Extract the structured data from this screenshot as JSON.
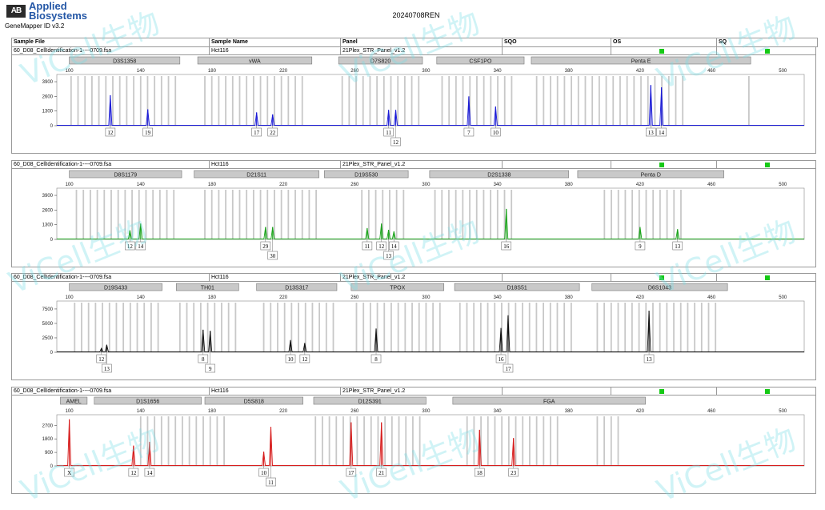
{
  "header": {
    "logo_mark": "AB",
    "logo_line1": "Applied",
    "logo_line2": "Biosystems",
    "app_version": "GeneMapper ID v3.2",
    "run_title": "20240708REN"
  },
  "columns": [
    "Sample File",
    "Sample Name",
    "Panel",
    "SQO",
    "OS",
    "SQ"
  ],
  "watermark_text": "ViCell生物",
  "colors": {
    "blue": "#1a1ad6",
    "green": "#1aa31a",
    "black": "#111111",
    "red": "#d61a1a",
    "bin": "#c8c8c8",
    "flag": "#15c915"
  },
  "chart_data": [
    {
      "type": "electropherogram",
      "dye": "blue",
      "sample_file": "60_D08_CellIdentification-1----0709.fsa",
      "sample_name": "Hct116",
      "panel_name": "21Plex_STR_Panel_v1.2",
      "x_ticks": [
        100,
        140,
        180,
        220,
        260,
        300,
        340,
        380,
        420,
        460,
        500
      ],
      "y_ticks": [
        0,
        1300,
        2600,
        3900
      ],
      "ylim": [
        0,
        4400
      ],
      "xlim": [
        93,
        512
      ],
      "markers": [
        {
          "name": "D3S1358",
          "range": [
            100,
            162
          ]
        },
        {
          "name": "vWA",
          "range": [
            172,
            236
          ]
        },
        {
          "name": "D7S820",
          "range": [
            251,
            298
          ]
        },
        {
          "name": "CSF1PO",
          "range": [
            306,
            355
          ]
        },
        {
          "name": "Penta E",
          "range": [
            359,
            482
          ]
        }
      ],
      "peaks": [
        {
          "x": 123,
          "h": 2700,
          "label": "12"
        },
        {
          "x": 144,
          "h": 1450,
          "label": "19"
        },
        {
          "x": 205,
          "h": 1180,
          "label": "17"
        },
        {
          "x": 214,
          "h": 1000,
          "label": "22"
        },
        {
          "x": 279,
          "h": 1400,
          "label": "11"
        },
        {
          "x": 283,
          "h": 1400,
          "label": "12"
        },
        {
          "x": 324,
          "h": 2600,
          "label": "7"
        },
        {
          "x": 339,
          "h": 1700,
          "label": "10"
        },
        {
          "x": 426,
          "h": 3600,
          "label": "13"
        },
        {
          "x": 432,
          "h": 3400,
          "label": "14"
        }
      ],
      "bins": [
        [
          101,
          160
        ],
        [
          176,
          232
        ],
        [
          253,
          298
        ],
        [
          309,
          350
        ],
        [
          362,
          446
        ],
        [
          481,
          482
        ]
      ]
    },
    {
      "type": "electropherogram",
      "dye": "green",
      "sample_file": "60_D08_CellIdentification-1----0709.fsa",
      "sample_name": "Hct116",
      "panel_name": "21Plex_STR_Panel_v1.2",
      "x_ticks": [
        100,
        140,
        180,
        220,
        260,
        300,
        340,
        380,
        420,
        460,
        500
      ],
      "y_ticks": [
        0,
        1300,
        2600,
        3900
      ],
      "ylim": [
        0,
        4400
      ],
      "xlim": [
        93,
        512
      ],
      "markers": [
        {
          "name": "D8S1179",
          "range": [
            100,
            163
          ]
        },
        {
          "name": "D21S11",
          "range": [
            170,
            240
          ]
        },
        {
          "name": "D19S530",
          "range": [
            243,
            290
          ]
        },
        {
          "name": "D2S1338",
          "range": [
            302,
            380
          ]
        },
        {
          "name": "Penta D",
          "range": [
            385,
            467
          ]
        }
      ],
      "peaks": [
        {
          "x": 134,
          "h": 800,
          "label": "12"
        },
        {
          "x": 140,
          "h": 1400,
          "label": "14"
        },
        {
          "x": 210,
          "h": 1100,
          "label": "29"
        },
        {
          "x": 214,
          "h": 1100,
          "label": "30"
        },
        {
          "x": 267,
          "h": 1000,
          "label": "11"
        },
        {
          "x": 275,
          "h": 1400,
          "label": "12"
        },
        {
          "x": 279,
          "h": 850,
          "label": "13"
        },
        {
          "x": 282,
          "h": 700,
          "label": "14"
        },
        {
          "x": 345,
          "h": 2700,
          "label": "16"
        },
        {
          "x": 420,
          "h": 1100,
          "label": "9"
        },
        {
          "x": 441,
          "h": 900,
          "label": "13"
        }
      ],
      "bins": [
        [
          104,
          160
        ],
        [
          176,
          240
        ],
        [
          264,
          290
        ],
        [
          305,
          350
        ],
        [
          400,
          446
        ]
      ]
    },
    {
      "type": "electropherogram",
      "dye": "black",
      "sample_file": "60_D08_CellIdentification-1----0709.fsa",
      "sample_name": "Hct116",
      "panel_name": "21Plex_STR_Panel_v1.2",
      "x_ticks": [
        100,
        140,
        180,
        220,
        260,
        300,
        340,
        380,
        420,
        460,
        500
      ],
      "y_ticks": [
        0,
        2500,
        5000,
        7500
      ],
      "ylim": [
        0,
        8600
      ],
      "xlim": [
        93,
        512
      ],
      "markers": [
        {
          "name": "D19S433",
          "range": [
            100,
            152
          ]
        },
        {
          "name": "TH01",
          "range": [
            160,
            195
          ]
        },
        {
          "name": "D13S317",
          "range": [
            205,
            250
          ]
        },
        {
          "name": "TPOX",
          "range": [
            258,
            310
          ]
        },
        {
          "name": "D18S51",
          "range": [
            316,
            386
          ]
        },
        {
          "name": "D6S1043",
          "range": [
            393,
            469
          ]
        }
      ],
      "peaks": [
        {
          "x": 118,
          "h": 700,
          "label": "12"
        },
        {
          "x": 121,
          "h": 1300,
          "label": "13"
        },
        {
          "x": 175,
          "h": 3900,
          "label": "8"
        },
        {
          "x": 179,
          "h": 3700,
          "label": "9"
        },
        {
          "x": 224,
          "h": 2100,
          "label": "10"
        },
        {
          "x": 232,
          "h": 1600,
          "label": "12"
        },
        {
          "x": 272,
          "h": 4100,
          "label": "8"
        },
        {
          "x": 342,
          "h": 4200,
          "label": "16"
        },
        {
          "x": 346,
          "h": 6400,
          "label": "17"
        },
        {
          "x": 425,
          "h": 7200,
          "label": "13"
        }
      ],
      "bins": [
        [
          103,
          150
        ],
        [
          162,
          195
        ],
        [
          209,
          250
        ],
        [
          261,
          310
        ],
        [
          319,
          383
        ],
        [
          396,
          465
        ]
      ]
    },
    {
      "type": "electropherogram",
      "dye": "red",
      "sample_file": "60_D08_CellIdentification-1----0709.fsa",
      "sample_name": "Hct116",
      "panel_name": "21Plex_STR_Panel_v1.2",
      "x_ticks": [
        100,
        140,
        180,
        220,
        260,
        300,
        340,
        380,
        420,
        460,
        500
      ],
      "y_ticks": [
        0,
        900,
        1800,
        2700
      ],
      "ylim": [
        0,
        3300
      ],
      "xlim": [
        93,
        512
      ],
      "markers": [
        {
          "name": "AMEL",
          "range": [
            95,
            110
          ]
        },
        {
          "name": "D1S1656",
          "range": [
            114,
            174
          ]
        },
        {
          "name": "D5S818",
          "range": [
            176,
            231
          ]
        },
        {
          "name": "D12S391",
          "range": [
            237,
            300
          ]
        },
        {
          "name": "FGA",
          "range": [
            315,
            423
          ]
        }
      ],
      "peaks": [
        {
          "x": 100,
          "h": 3100,
          "label": "X"
        },
        {
          "x": 136,
          "h": 1350,
          "label": "12"
        },
        {
          "x": 145,
          "h": 1600,
          "label": "14"
        },
        {
          "x": 209,
          "h": 950,
          "label": "10"
        },
        {
          "x": 213,
          "h": 2600,
          "label": "11"
        },
        {
          "x": 258,
          "h": 2900,
          "label": "17"
        },
        {
          "x": 275,
          "h": 2900,
          "label": "21"
        },
        {
          "x": 330,
          "h": 2400,
          "label": "18"
        },
        {
          "x": 349,
          "h": 1850,
          "label": "23"
        }
      ],
      "bins": [
        [
          140,
          190
        ],
        [
          238,
          300
        ],
        [
          323,
          374
        ],
        [
          396,
          408
        ]
      ]
    }
  ]
}
